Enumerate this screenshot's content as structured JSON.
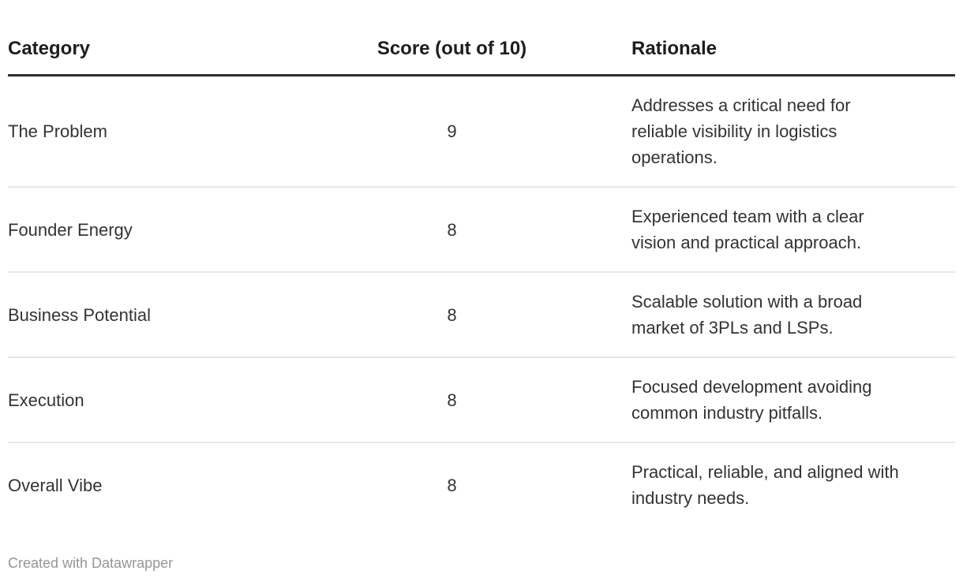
{
  "table": {
    "columns": [
      {
        "label": "Category",
        "align": "left"
      },
      {
        "label": "Score (out of 10)",
        "align": "center"
      },
      {
        "label": "Rationale",
        "align": "left"
      }
    ],
    "rows": [
      {
        "category": "The Problem",
        "score": "9",
        "rationale": "Addresses a critical need for reliable visibility in logistics operations."
      },
      {
        "category": "Founder Energy",
        "score": "8",
        "rationale": "Experienced team with a clear vision and practical approach."
      },
      {
        "category": "Business Potential",
        "score": "8",
        "rationale": "Scalable solution with a broad market of 3PLs and LSPs."
      },
      {
        "category": "Execution",
        "score": "8",
        "rationale": "Focused development avoiding common industry pitfalls."
      },
      {
        "category": "Overall Vibe",
        "score": "8",
        "rationale": "Practical, reliable, and aligned with industry needs."
      }
    ]
  },
  "footer": {
    "attribution": "Created with Datawrapper"
  },
  "colors": {
    "background": "#ffffff",
    "header_text": "#1d1d1d",
    "body_text": "#333333",
    "header_rule": "#2e2e2e",
    "row_separator": "#e8e8e8",
    "footer_text": "#969696"
  },
  "chart_data": {
    "type": "table",
    "title": "",
    "columns": [
      "Category",
      "Score (out of 10)",
      "Rationale"
    ],
    "categories": [
      "The Problem",
      "Founder Energy",
      "Business Potential",
      "Execution",
      "Overall Vibe"
    ],
    "series": [
      {
        "name": "Score (out of 10)",
        "values": [
          9,
          8,
          8,
          8,
          8
        ]
      }
    ],
    "rationales": [
      "Addresses a critical need for reliable visibility in logistics operations.",
      "Experienced team with a clear vision and practical approach.",
      "Scalable solution with a broad market of 3PLs and LSPs.",
      "Focused development avoiding common industry pitfalls.",
      "Practical, reliable, and aligned with industry needs."
    ],
    "score_range": [
      0,
      10
    ],
    "attribution": "Created with Datawrapper"
  }
}
